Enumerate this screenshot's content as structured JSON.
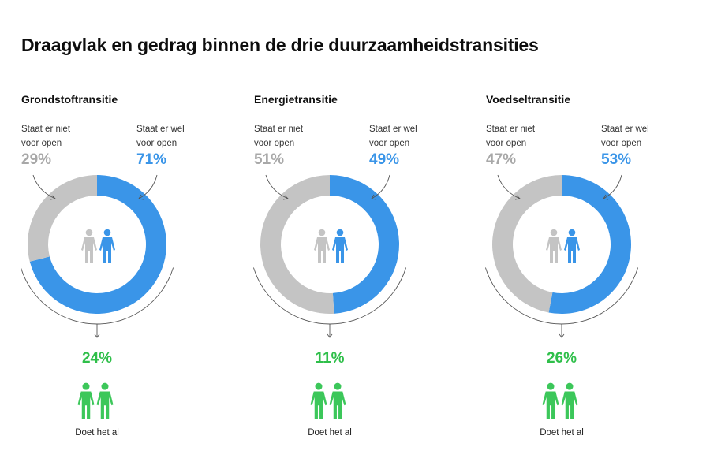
{
  "title": "Draagvlak en gedrag binnen de drie duurzaamheidstransities",
  "colors": {
    "open": "#3a95e8",
    "not_open": "#c4c4c4",
    "doing": "#3cc75a",
    "arrow": "#555555"
  },
  "chart_data": {
    "type": "pie",
    "title": "Draagvlak en gedrag binnen de drie duurzaamheidstransities",
    "panels": [
      {
        "name": "Grondstoftransitie",
        "not_open_label": "Staat er niet voor open",
        "open_label": "Staat er wel voor open",
        "not_open_pct": 29,
        "open_pct": 71,
        "not_open_text": "29%",
        "open_text": "71%",
        "doing_pct": 24,
        "doing_text": "24%",
        "doing_label": "Doet het al"
      },
      {
        "name": "Energietransitie",
        "not_open_label": "Staat er niet voor open",
        "open_label": "Staat er wel voor open",
        "not_open_pct": 51,
        "open_pct": 49,
        "not_open_text": "51%",
        "open_text": "49%",
        "doing_pct": 11,
        "doing_text": "11%",
        "doing_label": "Doet het al"
      },
      {
        "name": "Voedseltransitie",
        "not_open_label": "Staat er niet voor open",
        "open_label": "Staat er wel voor open",
        "not_open_pct": 47,
        "open_pct": 53,
        "not_open_text": "47%",
        "open_text": "53%",
        "doing_pct": 26,
        "doing_text": "26%",
        "doing_label": "Doet het al"
      }
    ],
    "label_lines": {
      "not_open": [
        "Staat er niet",
        "voor open"
      ],
      "open": [
        "Staat er wel",
        "voor open"
      ]
    }
  }
}
